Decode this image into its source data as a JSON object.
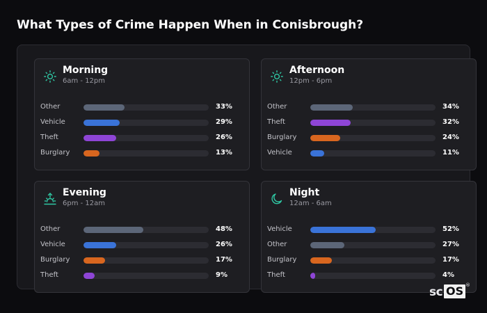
{
  "title": "What Types of Crime Happen When in Conisbrough?",
  "colors": {
    "accent_icon": "#2fc7a3",
    "Other": "#5c6678",
    "Vehicle": "#3a73d8",
    "Theft": "#8e45d6",
    "Burglary": "#d8661f",
    "track": "#2c2c32"
  },
  "cards": [
    {
      "title": "Morning",
      "subtitle": "6am - 12pm",
      "icon": "sun-icon",
      "rows": [
        {
          "label": "Other",
          "value": 33,
          "value_text": "33%"
        },
        {
          "label": "Vehicle",
          "value": 29,
          "value_text": "29%"
        },
        {
          "label": "Theft",
          "value": 26,
          "value_text": "26%"
        },
        {
          "label": "Burglary",
          "value": 13,
          "value_text": "13%"
        }
      ]
    },
    {
      "title": "Afternoon",
      "subtitle": "12pm - 6pm",
      "icon": "sun-icon",
      "rows": [
        {
          "label": "Other",
          "value": 34,
          "value_text": "34%"
        },
        {
          "label": "Theft",
          "value": 32,
          "value_text": "32%"
        },
        {
          "label": "Burglary",
          "value": 24,
          "value_text": "24%"
        },
        {
          "label": "Vehicle",
          "value": 11,
          "value_text": "11%"
        }
      ]
    },
    {
      "title": "Evening",
      "subtitle": "6pm - 12am",
      "icon": "sunset-icon",
      "rows": [
        {
          "label": "Other",
          "value": 48,
          "value_text": "48%"
        },
        {
          "label": "Vehicle",
          "value": 26,
          "value_text": "26%"
        },
        {
          "label": "Burglary",
          "value": 17,
          "value_text": "17%"
        },
        {
          "label": "Theft",
          "value": 9,
          "value_text": "9%"
        }
      ]
    },
    {
      "title": "Night",
      "subtitle": "12am - 6am",
      "icon": "moon-icon",
      "rows": [
        {
          "label": "Vehicle",
          "value": 52,
          "value_text": "52%"
        },
        {
          "label": "Other",
          "value": 27,
          "value_text": "27%"
        },
        {
          "label": "Burglary",
          "value": 17,
          "value_text": "17%"
        },
        {
          "label": "Theft",
          "value": 4,
          "value_text": "4%"
        }
      ]
    }
  ],
  "logo": {
    "prefix": "sc",
    "boxed": "OS",
    "mark": "®"
  }
}
